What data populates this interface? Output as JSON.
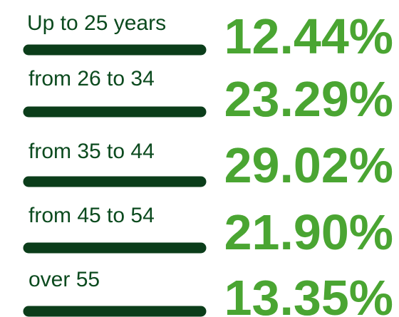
{
  "items": [
    {
      "label": "Up to 25 years",
      "value": "12.44%"
    },
    {
      "label": "from 26 to 34",
      "value": "23.29%"
    },
    {
      "label": "from 35 to 44",
      "value": "29.02%"
    },
    {
      "label": "from 45 to 54",
      "value": "21.90%"
    },
    {
      "label": "over 55",
      "value": "13.35%"
    }
  ]
}
